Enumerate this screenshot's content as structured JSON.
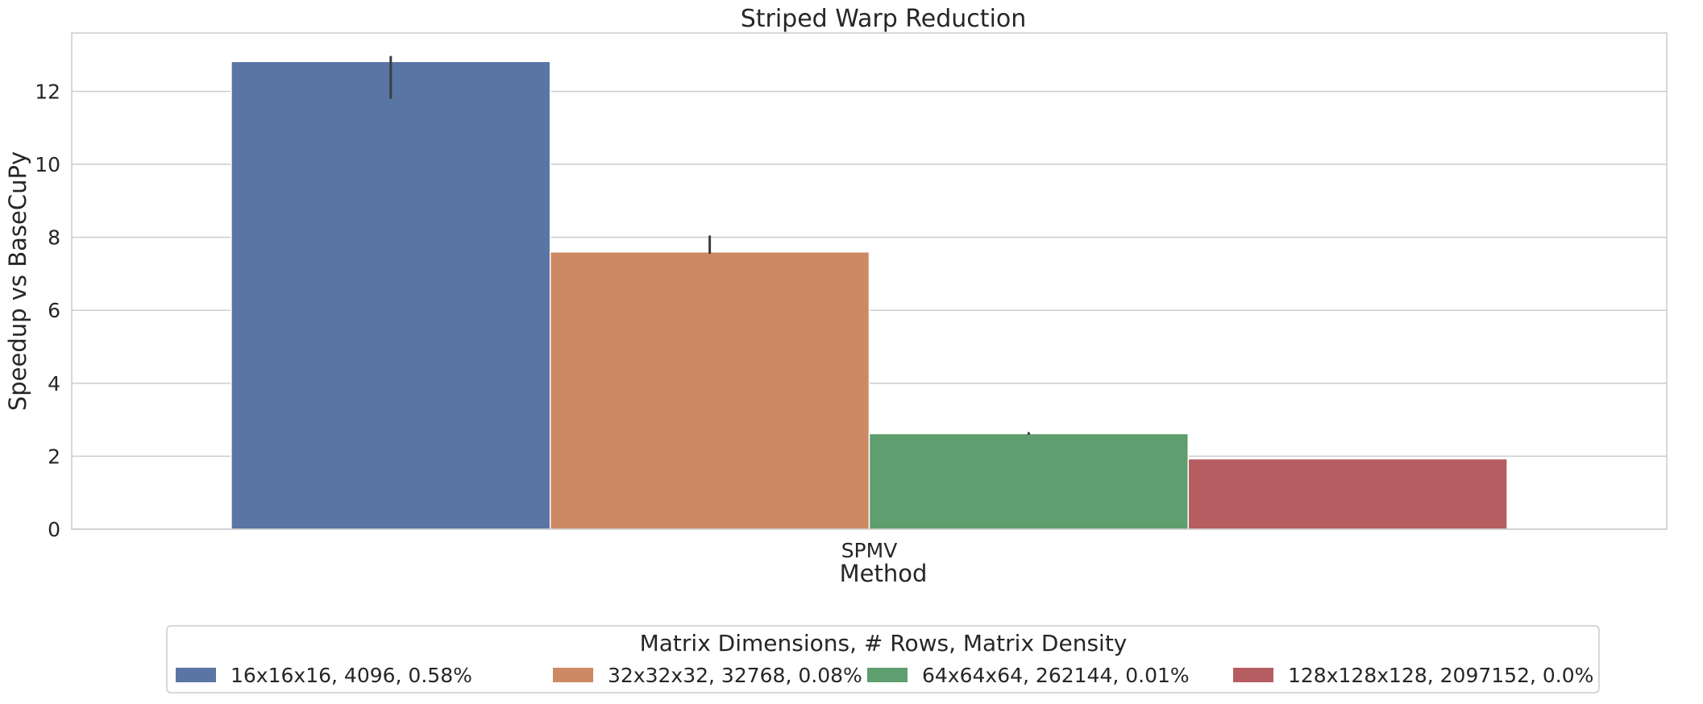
{
  "chart_data": {
    "type": "bar",
    "title": "Striped Warp Reduction",
    "xlabel": "Method",
    "ylabel": "Speedup vs BaseCuPy",
    "categories": [
      "SPMV"
    ],
    "ylim": [
      0,
      13.6
    ],
    "yticks": [
      0,
      2,
      4,
      6,
      8,
      10,
      12
    ],
    "grid": true,
    "legend": {
      "title": "Matrix Dimensions, # Rows, Matrix Density",
      "placement": "bottom-center"
    },
    "series": [
      {
        "name": "16x16x16, 4096, 0.58%",
        "values": [
          12.82
        ],
        "error": [
          [
            11.8,
            12.97
          ]
        ],
        "color": "#5975a4"
      },
      {
        "name": "32x32x32, 32768, 0.08%",
        "values": [
          7.6
        ],
        "error": [
          [
            7.55,
            8.05
          ]
        ],
        "color": "#cc8963"
      },
      {
        "name": "64x64x64, 262144, 0.01%",
        "values": [
          2.62
        ],
        "error": [
          [
            2.59,
            2.66
          ]
        ],
        "color": "#5f9e6e"
      },
      {
        "name": "128x128x128, 2097152, 0.0%",
        "values": [
          1.93
        ],
        "error": [
          [
            1.93,
            1.93
          ]
        ],
        "color": "#b55d60"
      }
    ]
  }
}
